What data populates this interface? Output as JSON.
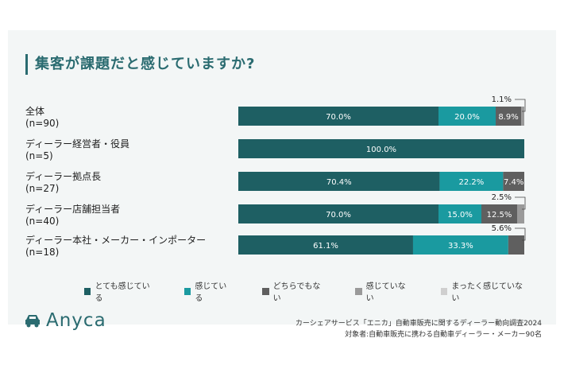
{
  "title": "集客が課題だと感じていますか?",
  "brand": {
    "name": "Anyca",
    "color": "#2a6b70"
  },
  "footer": {
    "line1": "カーシェアサービス「エニカ」自動車販売に関するディーラー動向調査2024",
    "line2": "対象者:自動車販売に携わる自動車ディーラー・メーカー90名"
  },
  "chart_data": {
    "type": "bar",
    "orientation": "horizontal-stacked-100",
    "title": "集客が課題だと感じていますか?",
    "categories": [
      {
        "label": "全体",
        "n": "(n=90)"
      },
      {
        "label": "ディーラー経営者・役員",
        "n": "(n=5)"
      },
      {
        "label": "ディーラー拠点長",
        "n": "(n=27)"
      },
      {
        "label": "ディーラー店舗担当者",
        "n": "(n=40)"
      },
      {
        "label": "ディーラー本社・メーカー・インポーター",
        "n": "(n=18)"
      }
    ],
    "series": [
      {
        "name": "とても感じている",
        "color": "#1e5f63",
        "values": [
          70.0,
          100.0,
          70.4,
          70.0,
          61.1
        ],
        "labels": [
          "70.0%",
          "100.0%",
          "70.4%",
          "70.0%",
          "61.1%"
        ]
      },
      {
        "name": "感じている",
        "color": "#1a9aa0",
        "values": [
          20.0,
          0,
          22.2,
          15.0,
          33.3
        ],
        "labels": [
          "20.0%",
          "",
          "22.2%",
          "15.0%",
          "33.3%"
        ]
      },
      {
        "name": "どちらでもない",
        "color": "#5f5f5f",
        "values": [
          8.9,
          0,
          7.4,
          12.5,
          5.6
        ],
        "labels": [
          "8.9%",
          "",
          "7.4%",
          "12.5%",
          ""
        ]
      },
      {
        "name": "感じていない",
        "color": "#9a9a9a",
        "values": [
          1.1,
          0,
          0,
          2.5,
          0
        ],
        "labels": [
          "",
          "",
          "",
          "",
          ""
        ]
      },
      {
        "name": "まったく感じていない",
        "color": "#cfcfcf",
        "values": [
          0,
          0,
          0,
          0,
          0
        ],
        "labels": [
          "",
          "",
          "",
          "",
          ""
        ]
      }
    ],
    "callouts": [
      {
        "row": 0,
        "text": "1.1%"
      },
      {
        "row": 3,
        "text": "2.5%"
      },
      {
        "row": 4,
        "text": "5.6%"
      }
    ],
    "xlim": [
      0,
      100
    ],
    "grid": false,
    "legend_position": "bottom"
  }
}
